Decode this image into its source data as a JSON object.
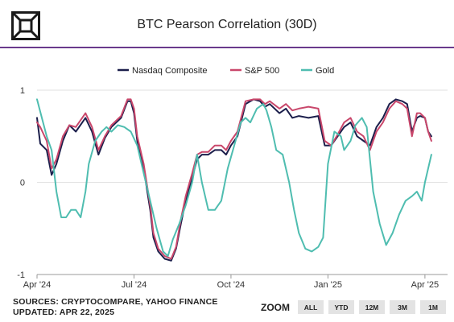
{
  "header": {
    "title": "BTC Pearson Correlation (30D)"
  },
  "footer": {
    "sources": "SOURCES: CRYPTOCOMPARE, YAHOO FINANCE",
    "updated": "UPDATED: APR 22, 2025"
  },
  "zoom": {
    "label": "ZOOM",
    "buttons": [
      "ALL",
      "YTD",
      "12M",
      "3M",
      "1M"
    ]
  },
  "chart_data": {
    "type": "line",
    "title": "BTC Pearson Correlation (30D)",
    "xlabel": "",
    "ylabel": "",
    "x_ticks": [
      "Apr '24",
      "Jul '24",
      "Oct '24",
      "Jan '25",
      "Apr '25"
    ],
    "y_ticks": [
      "1",
      "0",
      "-1"
    ],
    "ylim": [
      -1,
      1
    ],
    "grid": "horizontal",
    "legend_position": "top-center",
    "x_range_months": [
      0,
      12.7
    ],
    "series": [
      {
        "name": "Nasdaq Composite",
        "color": "#1b1e4b",
        "points": [
          [
            0,
            0.7
          ],
          [
            0.1,
            0.42
          ],
          [
            0.3,
            0.35
          ],
          [
            0.45,
            0.08
          ],
          [
            0.6,
            0.2
          ],
          [
            0.8,
            0.45
          ],
          [
            1.0,
            0.62
          ],
          [
            1.2,
            0.55
          ],
          [
            1.5,
            0.7
          ],
          [
            1.7,
            0.55
          ],
          [
            1.9,
            0.3
          ],
          [
            2.1,
            0.48
          ],
          [
            2.3,
            0.6
          ],
          [
            2.6,
            0.7
          ],
          [
            2.8,
            0.88
          ],
          [
            2.9,
            0.88
          ],
          [
            3.0,
            0.75
          ],
          [
            3.1,
            0.45
          ],
          [
            3.3,
            0.15
          ],
          [
            3.5,
            -0.3
          ],
          [
            3.6,
            -0.6
          ],
          [
            3.75,
            -0.75
          ],
          [
            3.95,
            -0.83
          ],
          [
            4.15,
            -0.85
          ],
          [
            4.3,
            -0.72
          ],
          [
            4.45,
            -0.45
          ],
          [
            4.6,
            -0.2
          ],
          [
            4.8,
            0.05
          ],
          [
            4.95,
            0.25
          ],
          [
            5.1,
            0.3
          ],
          [
            5.3,
            0.3
          ],
          [
            5.5,
            0.35
          ],
          [
            5.7,
            0.35
          ],
          [
            5.85,
            0.3
          ],
          [
            6.0,
            0.4
          ],
          [
            6.2,
            0.5
          ],
          [
            6.45,
            0.85
          ],
          [
            6.7,
            0.9
          ],
          [
            6.9,
            0.88
          ],
          [
            7.05,
            0.82
          ],
          [
            7.2,
            0.85
          ],
          [
            7.5,
            0.75
          ],
          [
            7.7,
            0.8
          ],
          [
            7.9,
            0.7
          ],
          [
            8.1,
            0.72
          ],
          [
            8.4,
            0.7
          ],
          [
            8.7,
            0.72
          ],
          [
            8.9,
            0.4
          ],
          [
            9.1,
            0.4
          ],
          [
            9.3,
            0.5
          ],
          [
            9.5,
            0.6
          ],
          [
            9.7,
            0.65
          ],
          [
            9.9,
            0.5
          ],
          [
            10.1,
            0.45
          ],
          [
            10.3,
            0.4
          ],
          [
            10.5,
            0.6
          ],
          [
            10.7,
            0.7
          ],
          [
            10.9,
            0.85
          ],
          [
            11.1,
            0.9
          ],
          [
            11.3,
            0.88
          ],
          [
            11.45,
            0.85
          ],
          [
            11.6,
            0.55
          ],
          [
            11.75,
            0.7
          ],
          [
            11.85,
            0.72
          ],
          [
            12.0,
            0.7
          ],
          [
            12.1,
            0.55
          ],
          [
            12.2,
            0.5
          ]
        ]
      },
      {
        "name": "S&P 500",
        "color": "#c9476b",
        "points": [
          [
            0,
            0.65
          ],
          [
            0.1,
            0.6
          ],
          [
            0.3,
            0.45
          ],
          [
            0.45,
            0.15
          ],
          [
            0.6,
            0.25
          ],
          [
            0.8,
            0.5
          ],
          [
            1.0,
            0.62
          ],
          [
            1.2,
            0.6
          ],
          [
            1.5,
            0.75
          ],
          [
            1.7,
            0.6
          ],
          [
            1.9,
            0.35
          ],
          [
            2.1,
            0.5
          ],
          [
            2.3,
            0.62
          ],
          [
            2.6,
            0.72
          ],
          [
            2.8,
            0.9
          ],
          [
            2.9,
            0.9
          ],
          [
            3.0,
            0.8
          ],
          [
            3.1,
            0.5
          ],
          [
            3.3,
            0.2
          ],
          [
            3.5,
            -0.25
          ],
          [
            3.6,
            -0.55
          ],
          [
            3.75,
            -0.72
          ],
          [
            3.95,
            -0.8
          ],
          [
            4.15,
            -0.83
          ],
          [
            4.3,
            -0.7
          ],
          [
            4.45,
            -0.4
          ],
          [
            4.6,
            -0.15
          ],
          [
            4.8,
            0.1
          ],
          [
            4.95,
            0.3
          ],
          [
            5.1,
            0.33
          ],
          [
            5.3,
            0.33
          ],
          [
            5.5,
            0.4
          ],
          [
            5.7,
            0.4
          ],
          [
            5.85,
            0.35
          ],
          [
            6.0,
            0.45
          ],
          [
            6.2,
            0.55
          ],
          [
            6.45,
            0.88
          ],
          [
            6.7,
            0.9
          ],
          [
            6.9,
            0.9
          ],
          [
            7.05,
            0.85
          ],
          [
            7.2,
            0.88
          ],
          [
            7.5,
            0.8
          ],
          [
            7.7,
            0.85
          ],
          [
            7.9,
            0.78
          ],
          [
            8.1,
            0.8
          ],
          [
            8.4,
            0.82
          ],
          [
            8.7,
            0.8
          ],
          [
            8.9,
            0.45
          ],
          [
            9.1,
            0.4
          ],
          [
            9.3,
            0.52
          ],
          [
            9.5,
            0.65
          ],
          [
            9.7,
            0.7
          ],
          [
            9.9,
            0.55
          ],
          [
            10.1,
            0.5
          ],
          [
            10.3,
            0.35
          ],
          [
            10.5,
            0.55
          ],
          [
            10.7,
            0.65
          ],
          [
            10.9,
            0.8
          ],
          [
            11.1,
            0.88
          ],
          [
            11.3,
            0.85
          ],
          [
            11.45,
            0.8
          ],
          [
            11.6,
            0.5
          ],
          [
            11.75,
            0.75
          ],
          [
            11.85,
            0.75
          ],
          [
            12.0,
            0.7
          ],
          [
            12.1,
            0.55
          ],
          [
            12.2,
            0.45
          ]
        ]
      },
      {
        "name": "Gold",
        "color": "#4fbdb0",
        "points": [
          [
            0,
            0.9
          ],
          [
            0.15,
            0.7
          ],
          [
            0.3,
            0.5
          ],
          [
            0.45,
            0.35
          ],
          [
            0.6,
            -0.1
          ],
          [
            0.75,
            -0.38
          ],
          [
            0.9,
            -0.38
          ],
          [
            1.05,
            -0.3
          ],
          [
            1.2,
            -0.3
          ],
          [
            1.35,
            -0.38
          ],
          [
            1.5,
            -0.1
          ],
          [
            1.6,
            0.2
          ],
          [
            1.8,
            0.45
          ],
          [
            2.0,
            0.55
          ],
          [
            2.15,
            0.6
          ],
          [
            2.3,
            0.55
          ],
          [
            2.5,
            0.62
          ],
          [
            2.7,
            0.6
          ],
          [
            2.9,
            0.55
          ],
          [
            3.1,
            0.4
          ],
          [
            3.3,
            0.1
          ],
          [
            3.5,
            -0.2
          ],
          [
            3.7,
            -0.5
          ],
          [
            3.9,
            -0.75
          ],
          [
            4.05,
            -0.8
          ],
          [
            4.2,
            -0.62
          ],
          [
            4.4,
            -0.45
          ],
          [
            4.6,
            -0.25
          ],
          [
            4.8,
            0.0
          ],
          [
            4.95,
            0.3
          ],
          [
            5.1,
            0.0
          ],
          [
            5.3,
            -0.3
          ],
          [
            5.5,
            -0.3
          ],
          [
            5.7,
            -0.2
          ],
          [
            5.9,
            0.15
          ],
          [
            6.1,
            0.4
          ],
          [
            6.3,
            0.65
          ],
          [
            6.45,
            0.7
          ],
          [
            6.6,
            0.65
          ],
          [
            6.8,
            0.8
          ],
          [
            7.0,
            0.85
          ],
          [
            7.1,
            0.78
          ],
          [
            7.25,
            0.6
          ],
          [
            7.4,
            0.35
          ],
          [
            7.6,
            0.3
          ],
          [
            7.8,
            0.0
          ],
          [
            7.95,
            -0.3
          ],
          [
            8.1,
            -0.55
          ],
          [
            8.3,
            -0.72
          ],
          [
            8.5,
            -0.75
          ],
          [
            8.7,
            -0.7
          ],
          [
            8.85,
            -0.6
          ],
          [
            9.0,
            0.2
          ],
          [
            9.2,
            0.55
          ],
          [
            9.4,
            0.5
          ],
          [
            9.5,
            0.35
          ],
          [
            9.7,
            0.45
          ],
          [
            9.85,
            0.62
          ],
          [
            10.05,
            0.7
          ],
          [
            10.2,
            0.6
          ],
          [
            10.4,
            -0.1
          ],
          [
            10.6,
            -0.45
          ],
          [
            10.8,
            -0.68
          ],
          [
            11.0,
            -0.55
          ],
          [
            11.2,
            -0.35
          ],
          [
            11.4,
            -0.2
          ],
          [
            11.6,
            -0.15
          ],
          [
            11.75,
            -0.1
          ],
          [
            11.9,
            -0.2
          ],
          [
            12.0,
            0.0
          ],
          [
            12.1,
            0.15
          ],
          [
            12.2,
            0.3
          ]
        ]
      }
    ]
  }
}
